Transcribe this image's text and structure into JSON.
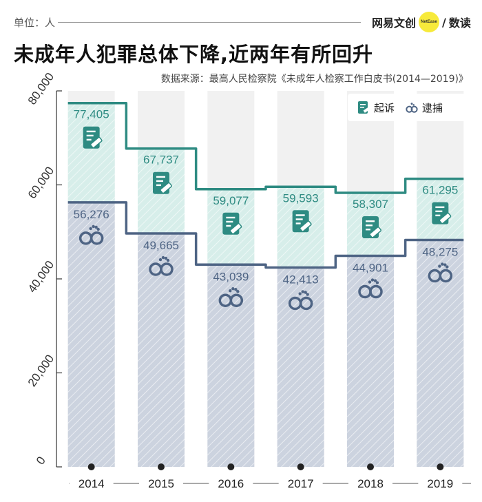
{
  "header": {
    "unit_label": "单位：人",
    "brand_left": "网易文创",
    "brand_dot": "NetEase",
    "brand_sep": "/",
    "brand_right": "数读",
    "title": "未成年人犯罪总体下降,近两年有所回升",
    "source": "数据来源：最高人民检察院《未成年人检察工作白皮书(2014—2019)》"
  },
  "colors": {
    "prosecution": "#2e8b82",
    "prosecution_fill": "#d7eeea",
    "arrest": "#4e6484",
    "arrest_fill": "#ccd3df",
    "column_bg": "#f1f1f1"
  },
  "legend": {
    "prosecution_label": "起诉",
    "prosecution_icon": "gavel-document-icon",
    "arrest_label": "逮捕",
    "arrest_icon": "handcuffs-icon"
  },
  "chart_data": {
    "type": "line",
    "title": "未成年人犯罪总体下降,近两年有所回升",
    "categories": [
      "2014",
      "2015",
      "2016",
      "2017",
      "2018",
      "2019"
    ],
    "series": [
      {
        "name": "起诉",
        "values": [
          77405,
          67737,
          59077,
          59593,
          58307,
          61295
        ],
        "labels": [
          "77,405",
          "67,737",
          "59,077",
          "59,593",
          "58,307",
          "61,295"
        ]
      },
      {
        "name": "逮捕",
        "values": [
          56276,
          49665,
          43039,
          42413,
          44901,
          48275
        ],
        "labels": [
          "56,276",
          "49,665",
          "43,039",
          "42,413",
          "44,901",
          "48,275"
        ]
      }
    ],
    "yticks": [
      0,
      20000,
      40000,
      60000,
      80000
    ],
    "ytick_labels": [
      "0",
      "20,000",
      "40,000",
      "60,000",
      "80,000"
    ],
    "ylim": [
      0,
      80000
    ],
    "legend_position": "top-right",
    "grid": false
  }
}
